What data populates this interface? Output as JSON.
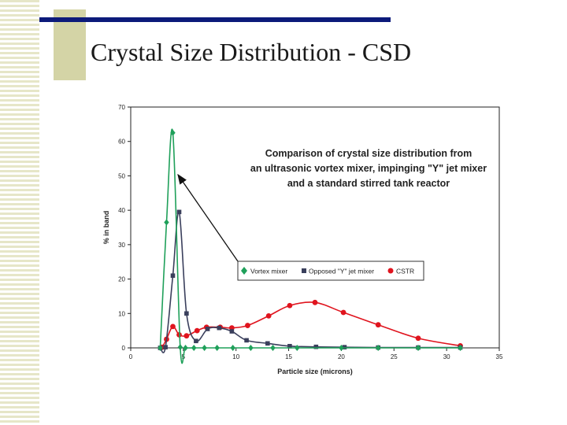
{
  "slide": {
    "title": "Crystal Size Distribution - CSD"
  },
  "colors": {
    "stripe": "#e6e6c8",
    "accent_block": "#d4d4a6",
    "title_rule": "#0c1a7a",
    "vortex": "#1fa05a",
    "jet": "#3a3f5c",
    "cstr": "#e0141e"
  },
  "chart_data": {
    "type": "line",
    "title": "Comparison of crystal size distribution from an ultrasonic vortex mixer, impinging \"Y\" jet mixer and a standard stirred tank reactor",
    "title_lines": [
      "Comparison of crystal size distribution from",
      "an ultrasonic vortex mixer, impinging \"Y\" jet mixer",
      "and a standard stirred tank reactor"
    ],
    "xlabel": "Particle size (microns)",
    "ylabel": "% in band",
    "xlim": [
      0,
      35
    ],
    "ylim": [
      0,
      70
    ],
    "xticks": [
      0,
      5,
      10,
      15,
      20,
      25,
      30,
      35
    ],
    "yticks": [
      0,
      10,
      20,
      30,
      40,
      50,
      60,
      70
    ],
    "grid": false,
    "legend_position": "center-right",
    "series": [
      {
        "name": "Vortex mixer",
        "marker": "diamond",
        "color": "#1fa05a",
        "points": [
          [
            2.8,
            0
          ],
          [
            3.4,
            36.5
          ],
          [
            4.0,
            62.5
          ],
          [
            4.7,
            0.2
          ],
          [
            5.2,
            0
          ],
          [
            6.0,
            0
          ],
          [
            7.0,
            0
          ],
          [
            8.2,
            0
          ],
          [
            9.7,
            0
          ],
          [
            11.4,
            0
          ],
          [
            13.5,
            0
          ],
          [
            15.8,
            0
          ],
          [
            20.0,
            0
          ],
          [
            23.5,
            0
          ],
          [
            27.3,
            0
          ],
          [
            31.3,
            0
          ]
        ]
      },
      {
        "name": "Opposed \"Y\" jet mixer",
        "marker": "square",
        "color": "#3a3f5c",
        "points": [
          [
            2.8,
            0
          ],
          [
            3.3,
            0.2
          ],
          [
            4.0,
            21.0
          ],
          [
            4.6,
            39.5
          ],
          [
            5.3,
            10.0
          ],
          [
            6.2,
            2.0
          ],
          [
            7.3,
            5.5
          ],
          [
            8.4,
            5.8
          ],
          [
            9.6,
            4.8
          ],
          [
            11.0,
            2.2
          ],
          [
            13.0,
            1.3
          ],
          [
            15.1,
            0.5
          ],
          [
            17.6,
            0.3
          ],
          [
            20.3,
            0.2
          ],
          [
            23.5,
            0.1
          ],
          [
            27.3,
            0.1
          ],
          [
            31.3,
            0.1
          ]
        ]
      },
      {
        "name": "CSTR",
        "marker": "circle",
        "color": "#e0141e",
        "points": [
          [
            3.0,
            0.2
          ],
          [
            3.4,
            2.5
          ],
          [
            4.0,
            6.2
          ],
          [
            4.6,
            3.8
          ],
          [
            5.3,
            3.5
          ],
          [
            6.3,
            5.0
          ],
          [
            7.2,
            6.0
          ],
          [
            8.5,
            6.0
          ],
          [
            9.6,
            5.8
          ],
          [
            11.1,
            6.5
          ],
          [
            13.1,
            9.3
          ],
          [
            15.1,
            12.3
          ],
          [
            17.5,
            13.2
          ],
          [
            20.2,
            10.3
          ],
          [
            23.5,
            6.7
          ],
          [
            27.3,
            2.8
          ],
          [
            31.3,
            0.6
          ]
        ]
      }
    ],
    "annotation": "arrow from legend to vortex mixer peak"
  }
}
